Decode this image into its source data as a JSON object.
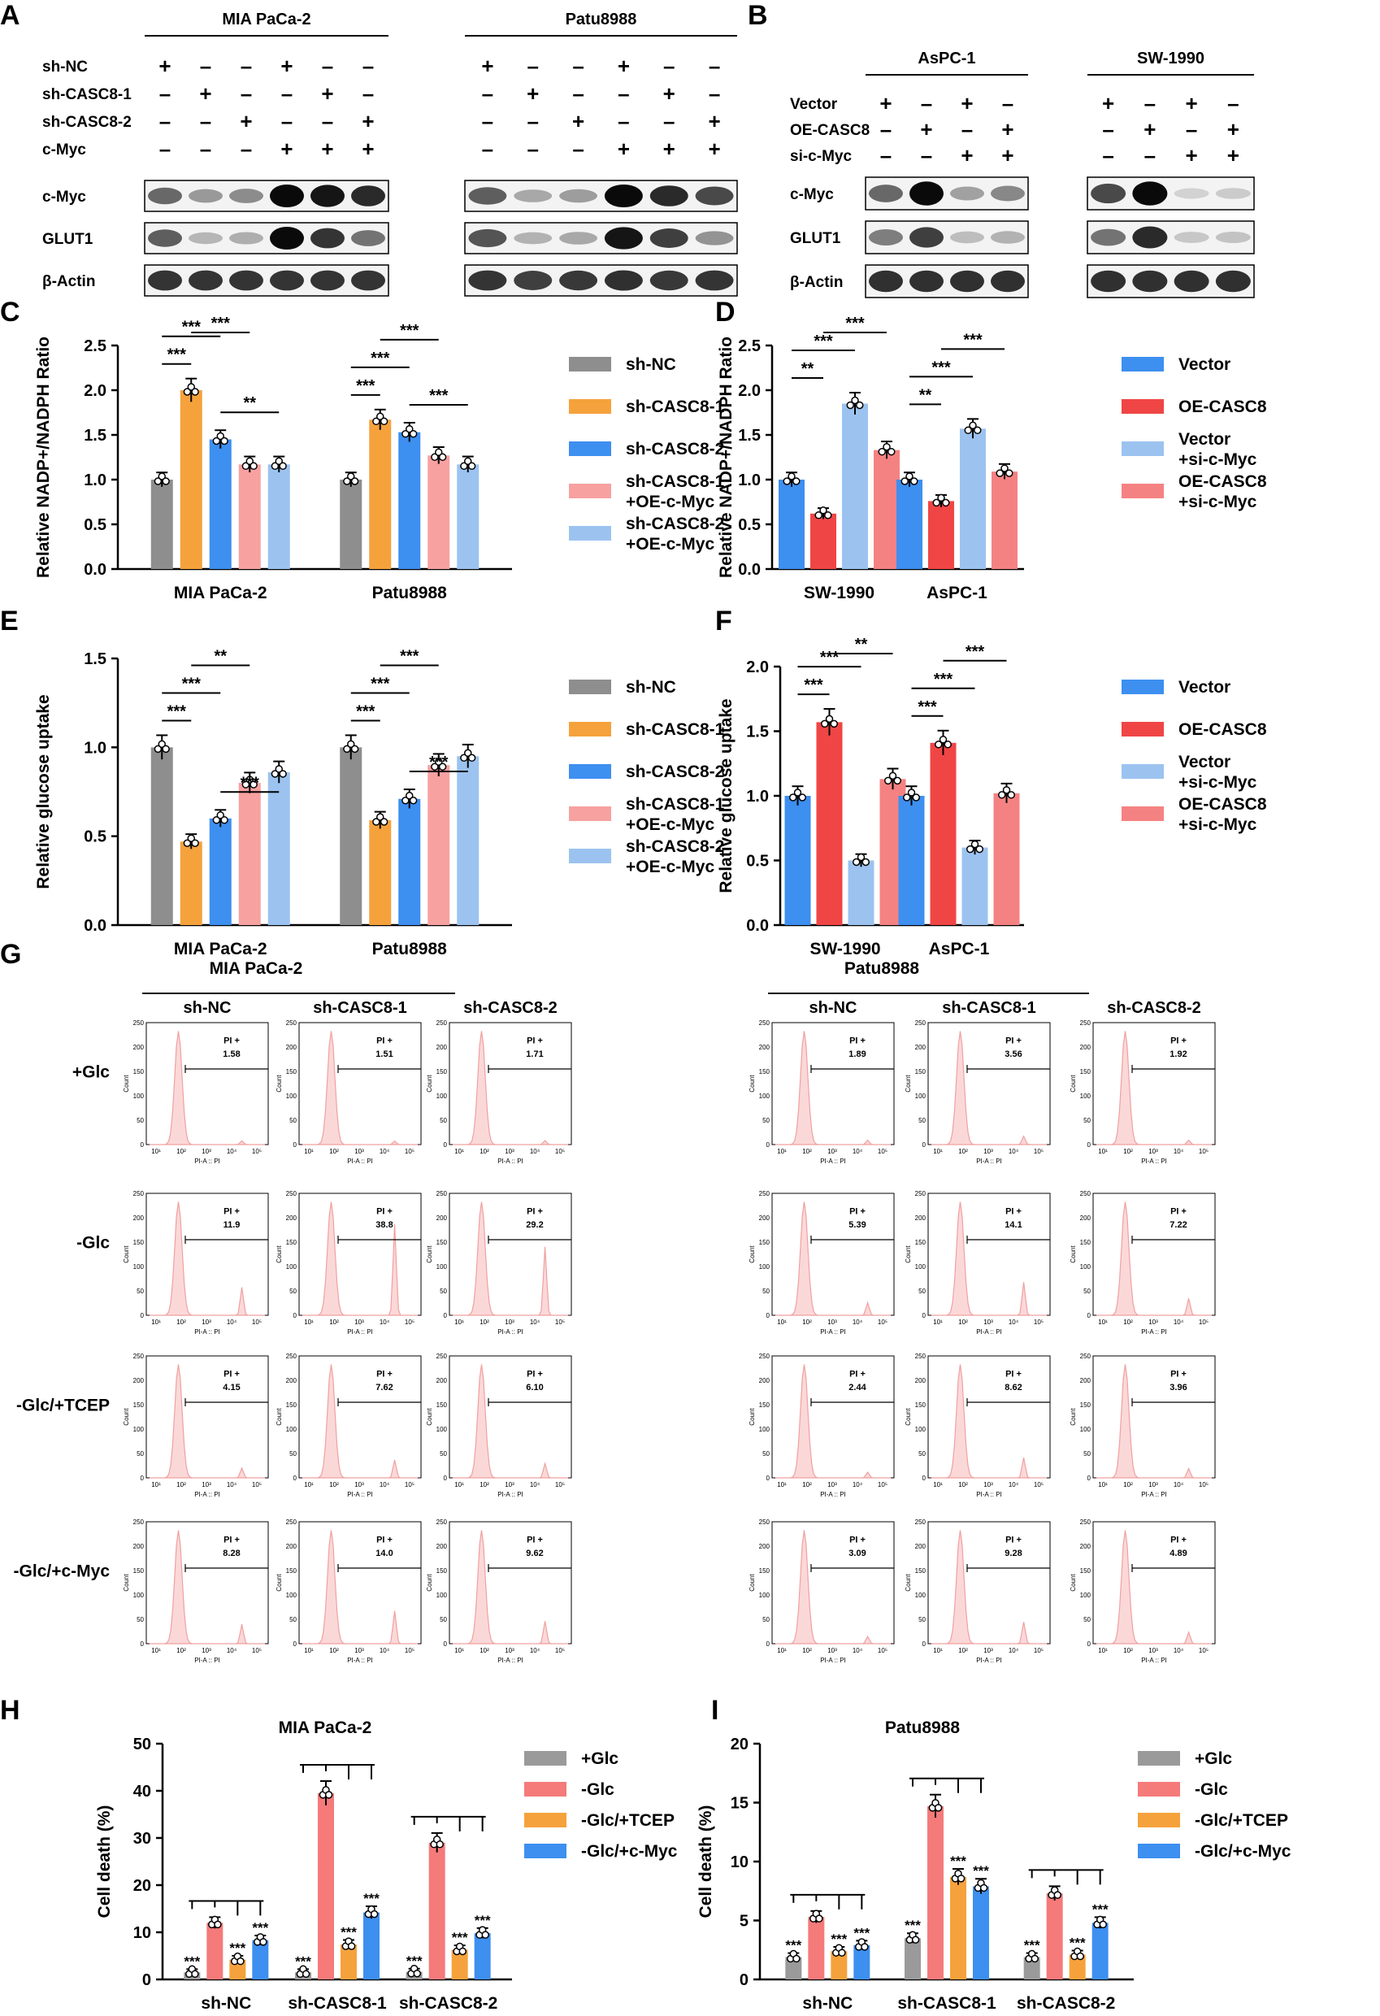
{
  "colors": {
    "grey": "#8e8e8e",
    "orange": "#f5a23c",
    "blue": "#3d8ff0",
    "pink": "#f7a1a1",
    "lightblue": "#9cc3f0",
    "red": "#f04545",
    "salmon": "#f58282",
    "h_grey": "#9a9a9a",
    "h_pink": "#f57a7a",
    "h_orange": "#f5a23c",
    "h_blue": "#3d8ff0",
    "flow_fill": "#fbd8d8",
    "flow_line": "#f0a0a0"
  },
  "panel_letters": [
    "A",
    "B",
    "C",
    "D",
    "E",
    "F",
    "G",
    "H",
    "I"
  ],
  "panelA": {
    "groups": [
      {
        "title": "MIA PaCa-2",
        "cond": [
          [
            "+",
            "–",
            "–",
            "+",
            "–",
            "–"
          ],
          [
            "–",
            "+",
            "–",
            "–",
            "+",
            "–"
          ],
          [
            "–",
            "–",
            "+",
            "–",
            "–",
            "+"
          ],
          [
            "–",
            "–",
            "–",
            "+",
            "+",
            "+"
          ]
        ],
        "bands": {
          "cmyc": [
            0.55,
            0.32,
            0.38,
            1.0,
            0.95,
            0.85
          ],
          "glut1": [
            0.6,
            0.18,
            0.22,
            1.0,
            0.8,
            0.5
          ],
          "actin": [
            0.8,
            0.8,
            0.8,
            0.8,
            0.8,
            0.8
          ]
        }
      },
      {
        "title": "Patu8988",
        "cond": [
          [
            "+",
            "–",
            "–",
            "+",
            "–",
            "–"
          ],
          [
            "–",
            "+",
            "–",
            "–",
            "+",
            "–"
          ],
          [
            "–",
            "–",
            "+",
            "–",
            "–",
            "+"
          ],
          [
            "–",
            "–",
            "–",
            "+",
            "+",
            "+"
          ]
        ],
        "bands": {
          "cmyc": [
            0.6,
            0.25,
            0.3,
            1.0,
            0.85,
            0.7
          ],
          "glut1": [
            0.65,
            0.2,
            0.25,
            0.95,
            0.75,
            0.35
          ],
          "actin": [
            0.8,
            0.75,
            0.78,
            0.82,
            0.78,
            0.8
          ]
        }
      }
    ],
    "cond_labels": [
      "sh-NC",
      "sh-CASC8-1",
      "sh-CASC8-2",
      "c-Myc"
    ],
    "blot_labels": [
      "c-Myc",
      "GLUT1",
      "β-Actin"
    ]
  },
  "panelB": {
    "groups": [
      {
        "title": "AsPC-1",
        "cond": [
          [
            "+",
            "–",
            "+",
            "–"
          ],
          [
            "–",
            "+",
            "–",
            "+"
          ],
          [
            "–",
            "–",
            "+",
            "+"
          ]
        ],
        "bands": {
          "cmyc": [
            0.55,
            1.0,
            0.28,
            0.4
          ],
          "glut1": [
            0.45,
            0.75,
            0.15,
            0.2
          ],
          "actin": [
            0.82,
            0.82,
            0.82,
            0.82
          ]
        }
      },
      {
        "title": "SW-1990",
        "cond": [
          [
            "+",
            "–",
            "+",
            "–"
          ],
          [
            "–",
            "+",
            "–",
            "+"
          ],
          [
            "–",
            "–",
            "+",
            "+"
          ]
        ],
        "bands": {
          "cmyc": [
            0.7,
            1.0,
            0.05,
            0.08
          ],
          "glut1": [
            0.5,
            0.85,
            0.1,
            0.12
          ],
          "actin": [
            0.82,
            0.82,
            0.82,
            0.82
          ]
        }
      }
    ],
    "cond_labels": [
      "Vector",
      "OE-CASC8",
      "si-c-Myc"
    ],
    "blot_labels": [
      "c-Myc",
      "GLUT1",
      "β-Actin"
    ]
  },
  "chart_data": [
    {
      "panel": "C",
      "type": "bar",
      "ylabel": "Relative NADP+/NADPH Ratio",
      "ylim": [
        0,
        2.5
      ],
      "yticks": [
        "0.0",
        "0.5",
        "1.0",
        "1.5",
        "2.0",
        "2.5"
      ],
      "categories": [
        "MIA PaCa-2",
        "Patu8988"
      ],
      "series": [
        {
          "name": "sh-NC",
          "values": [
            1.0,
            1.0
          ]
        },
        {
          "name": "sh-CASC8-1",
          "values": [
            2.0,
            1.67
          ]
        },
        {
          "name": "sh-CASC8-2",
          "values": [
            1.45,
            1.53
          ]
        },
        {
          "name": "sh-CASC8-1 +OE-c-Myc",
          "values": [
            1.17,
            1.27
          ]
        },
        {
          "name": "sh-CASC8-2 +OE-c-Myc",
          "values": [
            1.17,
            1.17
          ]
        }
      ],
      "sig": [
        {
          "cat": 0,
          "a": 0,
          "b": 1,
          "text": "***"
        },
        {
          "cat": 0,
          "a": 0,
          "b": 2,
          "text": "***"
        },
        {
          "cat": 0,
          "a": 1,
          "b": 3,
          "text": "***"
        },
        {
          "cat": 0,
          "a": 2,
          "b": 4,
          "text": "**"
        },
        {
          "cat": 1,
          "a": 0,
          "b": 1,
          "text": "***"
        },
        {
          "cat": 1,
          "a": 0,
          "b": 2,
          "text": "***"
        },
        {
          "cat": 1,
          "a": 1,
          "b": 3,
          "text": "***"
        },
        {
          "cat": 1,
          "a": 2,
          "b": 4,
          "text": "***"
        }
      ]
    },
    {
      "panel": "D",
      "type": "bar",
      "ylabel": "Relative NADP+/NADPH Ratio",
      "ylim": [
        0,
        2.5
      ],
      "yticks": [
        "0.0",
        "0.5",
        "1.0",
        "1.5",
        "2.0",
        "2.5"
      ],
      "categories": [
        "SW-1990",
        "AsPC-1"
      ],
      "series": [
        {
          "name": "Vector",
          "values": [
            1.0,
            1.0
          ]
        },
        {
          "name": "OE-CASC8",
          "values": [
            0.62,
            0.76
          ]
        },
        {
          "name": "Vector +si-c-Myc",
          "values": [
            1.85,
            1.57
          ]
        },
        {
          "name": "OE-CASC8 +si-c-Myc",
          "values": [
            1.33,
            1.09
          ]
        }
      ],
      "sig": [
        {
          "cat": 0,
          "a": 0,
          "b": 1,
          "text": "**"
        },
        {
          "cat": 0,
          "a": 0,
          "b": 2,
          "text": "***"
        },
        {
          "cat": 0,
          "a": 1,
          "b": 3,
          "text": "***"
        },
        {
          "cat": 1,
          "a": 0,
          "b": 1,
          "text": "**"
        },
        {
          "cat": 1,
          "a": 0,
          "b": 2,
          "text": "***"
        },
        {
          "cat": 1,
          "a": 1,
          "b": 3,
          "text": "***"
        }
      ]
    },
    {
      "panel": "E",
      "type": "bar",
      "ylabel": "Relative glucose uptake",
      "ylim": [
        0,
        1.5
      ],
      "yticks": [
        "0.0",
        "0.5",
        "1.0",
        "1.5"
      ],
      "categories": [
        "MIA PaCa-2",
        "Patu8988"
      ],
      "series": [
        {
          "name": "sh-NC",
          "values": [
            1.0,
            1.0
          ]
        },
        {
          "name": "sh-CASC8-1",
          "values": [
            0.47,
            0.59
          ]
        },
        {
          "name": "sh-CASC8-2",
          "values": [
            0.6,
            0.71
          ]
        },
        {
          "name": "sh-CASC8-1 +OE-c-Myc",
          "values": [
            0.8,
            0.9
          ]
        },
        {
          "name": "sh-CASC8-2 +OE-c-Myc",
          "values": [
            0.86,
            0.95
          ]
        }
      ],
      "sig": [
        {
          "cat": 0,
          "a": 0,
          "b": 1,
          "text": "***"
        },
        {
          "cat": 0,
          "a": 0,
          "b": 2,
          "text": "***"
        },
        {
          "cat": 0,
          "a": 1,
          "b": 3,
          "text": "**"
        },
        {
          "cat": 0,
          "a": 2,
          "b": 4,
          "text": "***"
        },
        {
          "cat": 1,
          "a": 0,
          "b": 1,
          "text": "***"
        },
        {
          "cat": 1,
          "a": 0,
          "b": 2,
          "text": "***"
        },
        {
          "cat": 1,
          "a": 1,
          "b": 3,
          "text": "***"
        },
        {
          "cat": 1,
          "a": 2,
          "b": 4,
          "text": "***"
        }
      ]
    },
    {
      "panel": "F",
      "type": "bar",
      "ylabel": "Relative glucose uptake",
      "ylim": [
        0,
        2.0
      ],
      "yticks": [
        "0.0",
        "0.5",
        "1.0",
        "1.5",
        "2.0"
      ],
      "categories": [
        "SW-1990",
        "AsPC-1"
      ],
      "series": [
        {
          "name": "Vector",
          "values": [
            1.0,
            1.0
          ]
        },
        {
          "name": "OE-CASC8",
          "values": [
            1.57,
            1.41
          ]
        },
        {
          "name": "Vector +si-c-Myc",
          "values": [
            0.5,
            0.6
          ]
        },
        {
          "name": "OE-CASC8 +si-c-Myc",
          "values": [
            1.13,
            1.02
          ]
        }
      ],
      "sig": [
        {
          "cat": 0,
          "a": 0,
          "b": 1,
          "text": "***"
        },
        {
          "cat": 0,
          "a": 0,
          "b": 2,
          "text": "***"
        },
        {
          "cat": 0,
          "a": 1,
          "b": 3,
          "text": "**"
        },
        {
          "cat": 1,
          "a": 0,
          "b": 1,
          "text": "***"
        },
        {
          "cat": 1,
          "a": 0,
          "b": 2,
          "text": "***"
        },
        {
          "cat": 1,
          "a": 1,
          "b": 3,
          "text": "***"
        }
      ]
    },
    {
      "panel": "G",
      "type": "histogram",
      "title": [
        "MIA PaCa-2",
        "Patu8988"
      ],
      "columns": [
        "sh-NC",
        "sh-CASC8-1",
        "sh-CASC8-2"
      ],
      "rows": [
        "+Glc",
        "-Glc",
        "-Glc/+TCEP",
        "-Glc/+c-Myc"
      ],
      "xlabel": "PI-A :: PI",
      "ylabel": "Count",
      "yticks": [
        "0",
        "50",
        "100",
        "150",
        "200",
        "250"
      ],
      "gate_label": "PI +",
      "pi_values": [
        [
          "1.58",
          "1.51",
          "1.71",
          "1.89",
          "3.56",
          "1.92"
        ],
        [
          "11.9",
          "38.8",
          "29.2",
          "5.39",
          "14.1",
          "7.22"
        ],
        [
          "4.15",
          "7.62",
          "6.10",
          "2.44",
          "8.62",
          "3.96"
        ],
        [
          "8.28",
          "14.0",
          "9.62",
          "3.09",
          "9.28",
          "4.89"
        ]
      ]
    },
    {
      "panel": "H",
      "type": "bar",
      "title": "MIA PaCa-2",
      "ylabel": "Cell death (%)",
      "ylim": [
        0,
        50
      ],
      "yticks": [
        "0",
        "10",
        "20",
        "30",
        "40",
        "50"
      ],
      "categories": [
        "sh-NC",
        "sh-CASC8-1",
        "sh-CASC8-2"
      ],
      "series": [
        {
          "name": "+Glc",
          "values": [
            1.5,
            1.5,
            1.6
          ]
        },
        {
          "name": "-Glc",
          "values": [
            12.0,
            39.5,
            29.0
          ]
        },
        {
          "name": "-Glc/+TCEP",
          "values": [
            4.2,
            7.4,
            6.3
          ]
        },
        {
          "name": "-Glc/+c-Myc",
          "values": [
            8.3,
            14.2,
            9.8
          ]
        }
      ],
      "stars": "***"
    },
    {
      "panel": "I",
      "type": "bar",
      "title": "Patu8988",
      "ylabel": "Cell death (%)",
      "ylim": [
        0,
        20
      ],
      "yticks": [
        "0",
        "5",
        "10",
        "15",
        "20"
      ],
      "categories": [
        "sh-NC",
        "sh-CASC8-1",
        "sh-CASC8-2"
      ],
      "series": [
        {
          "name": "+Glc",
          "values": [
            1.9,
            3.5,
            1.9
          ]
        },
        {
          "name": "-Glc",
          "values": [
            5.3,
            14.7,
            7.3
          ]
        },
        {
          "name": "-Glc/+TCEP",
          "values": [
            2.4,
            8.7,
            2.1
          ]
        },
        {
          "name": "-Glc/+c-Myc",
          "values": [
            2.9,
            7.9,
            4.8
          ]
        }
      ],
      "stars": "***"
    }
  ]
}
